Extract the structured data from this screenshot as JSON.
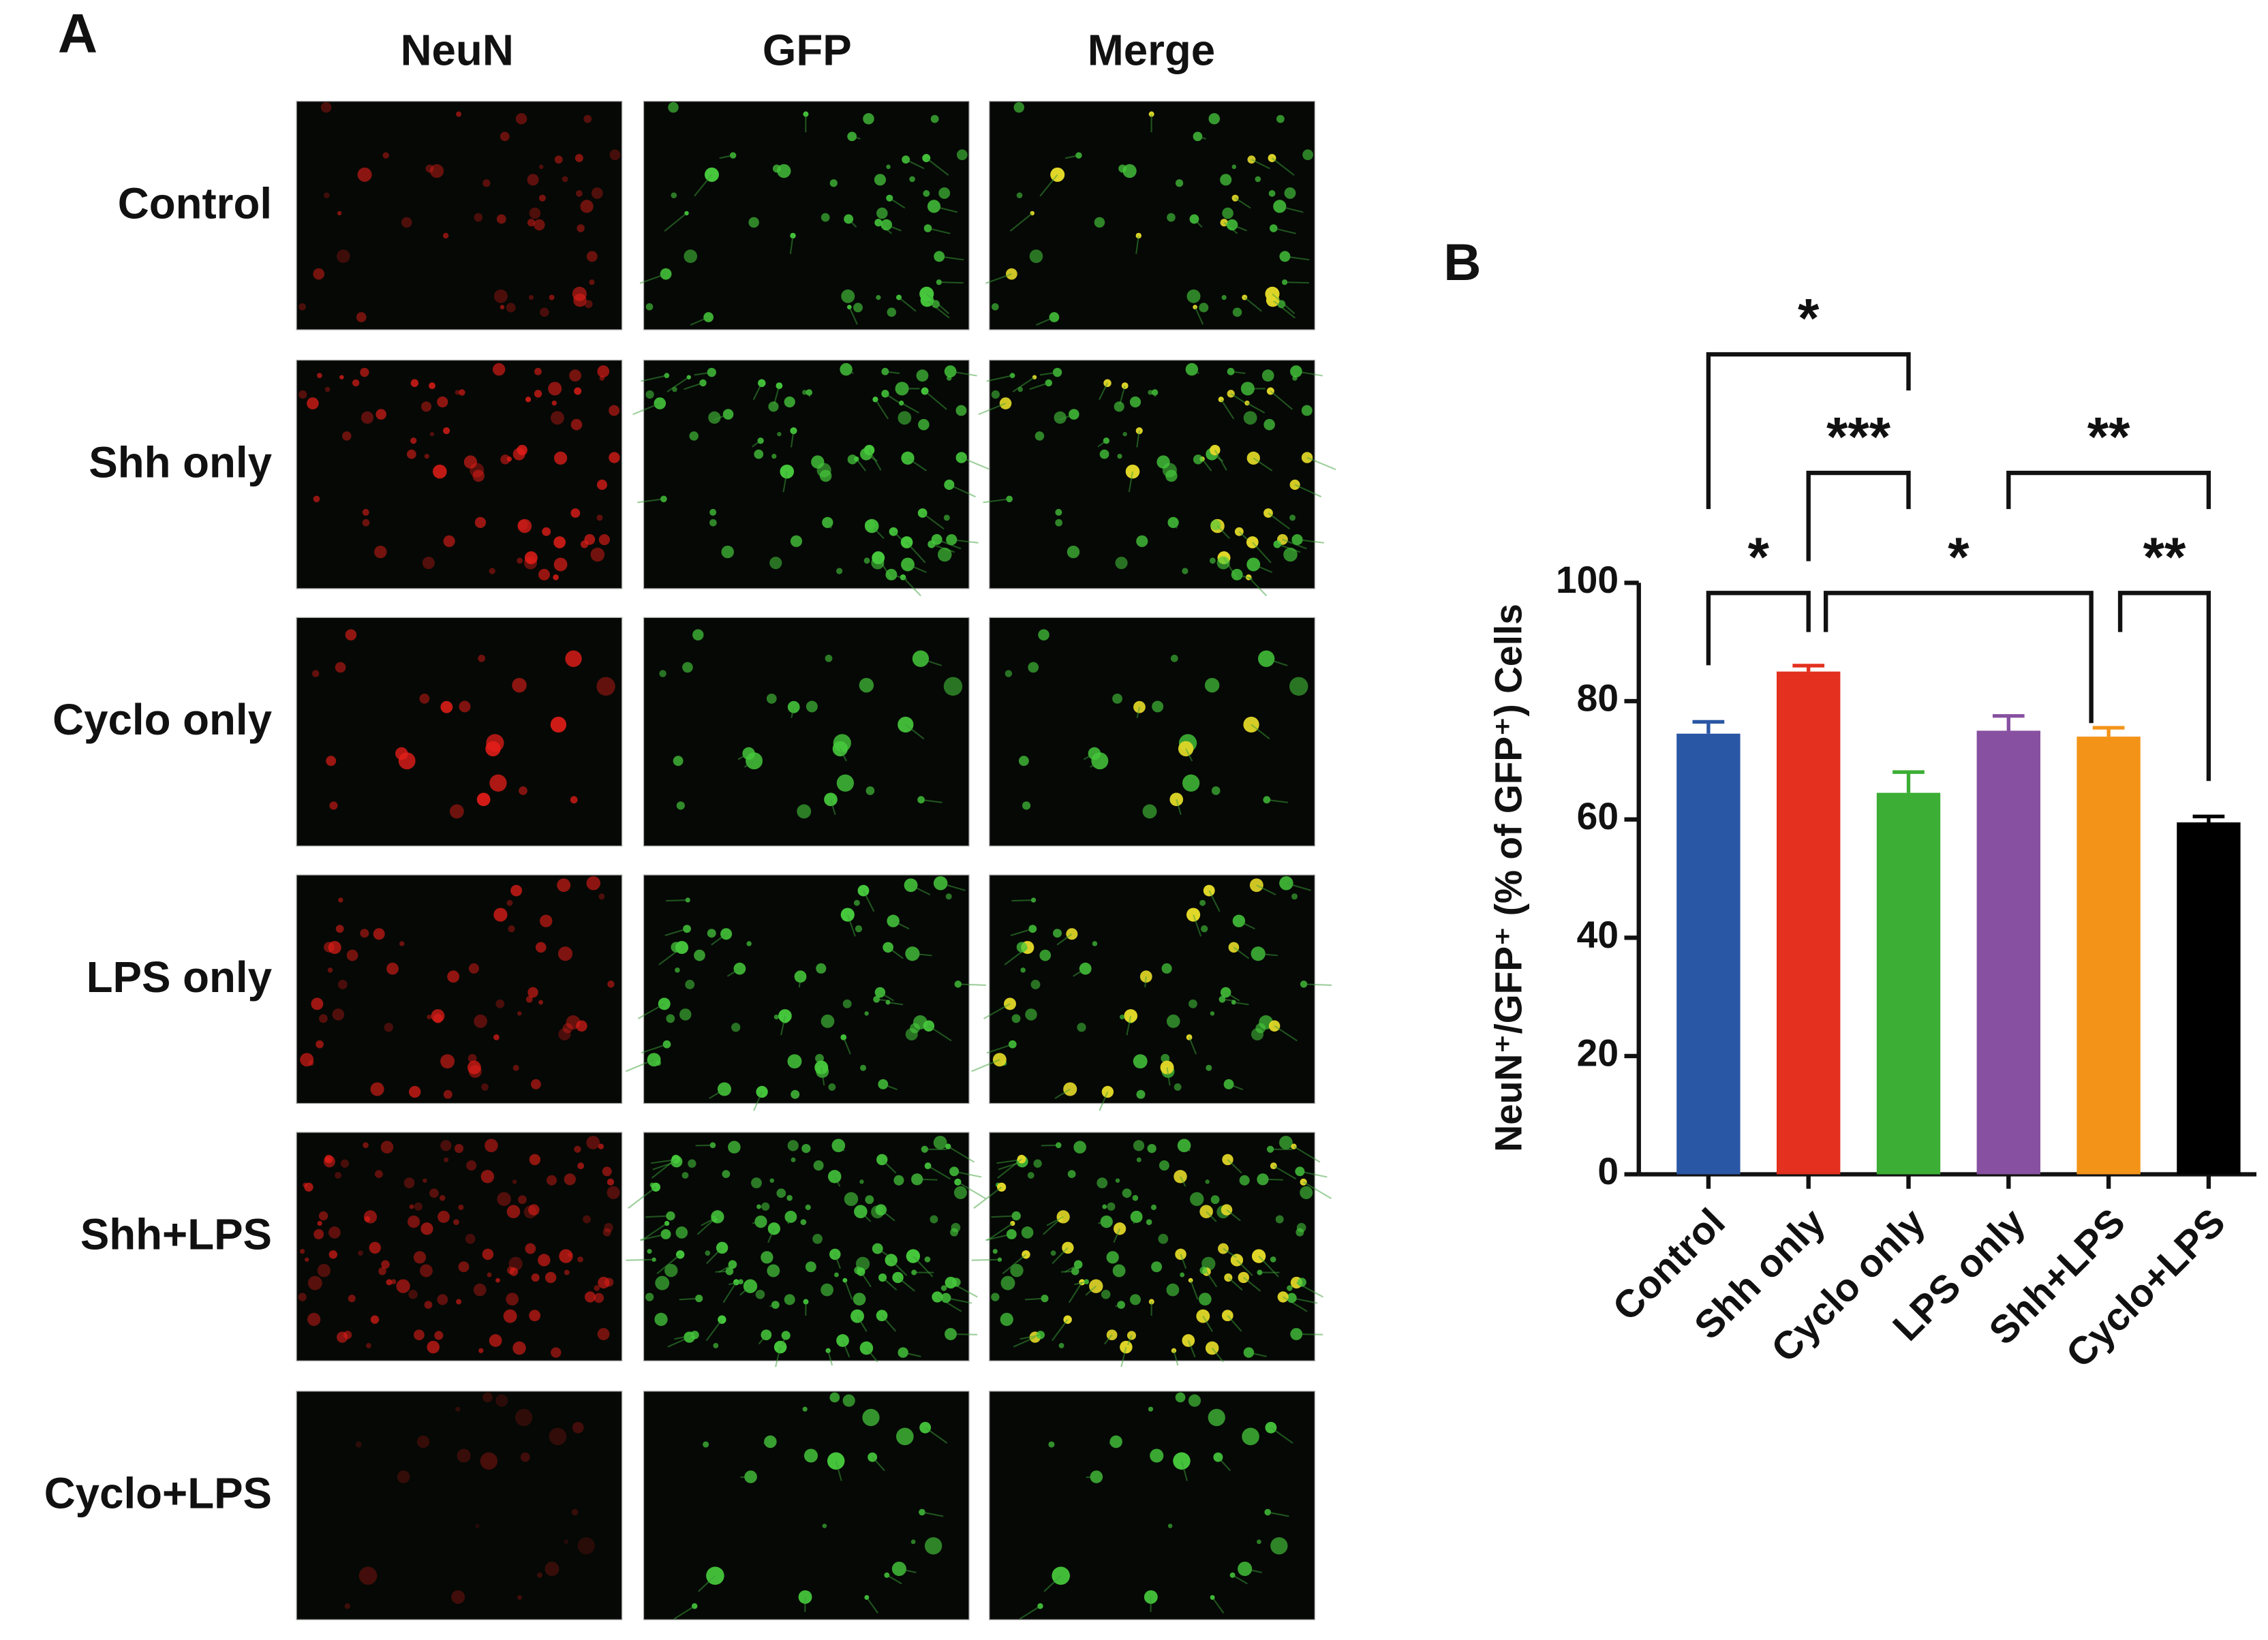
{
  "panel_a": {
    "label": "A",
    "columns": [
      "NeuN",
      "GFP",
      "Merge"
    ],
    "rows": [
      "Control",
      "Shh only",
      "Cyclo only",
      "LPS only",
      "Shh+LPS",
      "Cyclo+LPS"
    ]
  },
  "chart_data": {
    "type": "bar",
    "label": "B",
    "y_label": "NeuN⁺/GFP⁺ (% of GFP⁺) Cells",
    "categories": [
      "Control",
      "Shh only",
      "Cyclo only",
      "LPS only",
      "Shh+LPS",
      "Cyclo+LPS"
    ],
    "values": [
      74.5,
      85,
      64.5,
      75,
      74,
      59.5
    ],
    "errors": [
      2,
      1,
      3.5,
      2.5,
      1.5,
      1
    ],
    "colors": [
      "#2a57a5",
      "#e3301f",
      "#3cae35",
      "#8750a0",
      "#f39419",
      "#000000"
    ],
    "ylim": [
      0,
      100
    ],
    "yticks": [
      0,
      20,
      40,
      60,
      80,
      100
    ],
    "significance": [
      {
        "groups": [
          0,
          2
        ],
        "label": "*"
      },
      {
        "groups": [
          1,
          2
        ],
        "label": "***"
      },
      {
        "groups": [
          3,
          5
        ],
        "label": "**"
      },
      {
        "groups": [
          0,
          1
        ],
        "label": "*"
      },
      {
        "groups": [
          1,
          4
        ],
        "label": "*"
      },
      {
        "groups": [
          4,
          5
        ],
        "label": "**"
      }
    ]
  }
}
